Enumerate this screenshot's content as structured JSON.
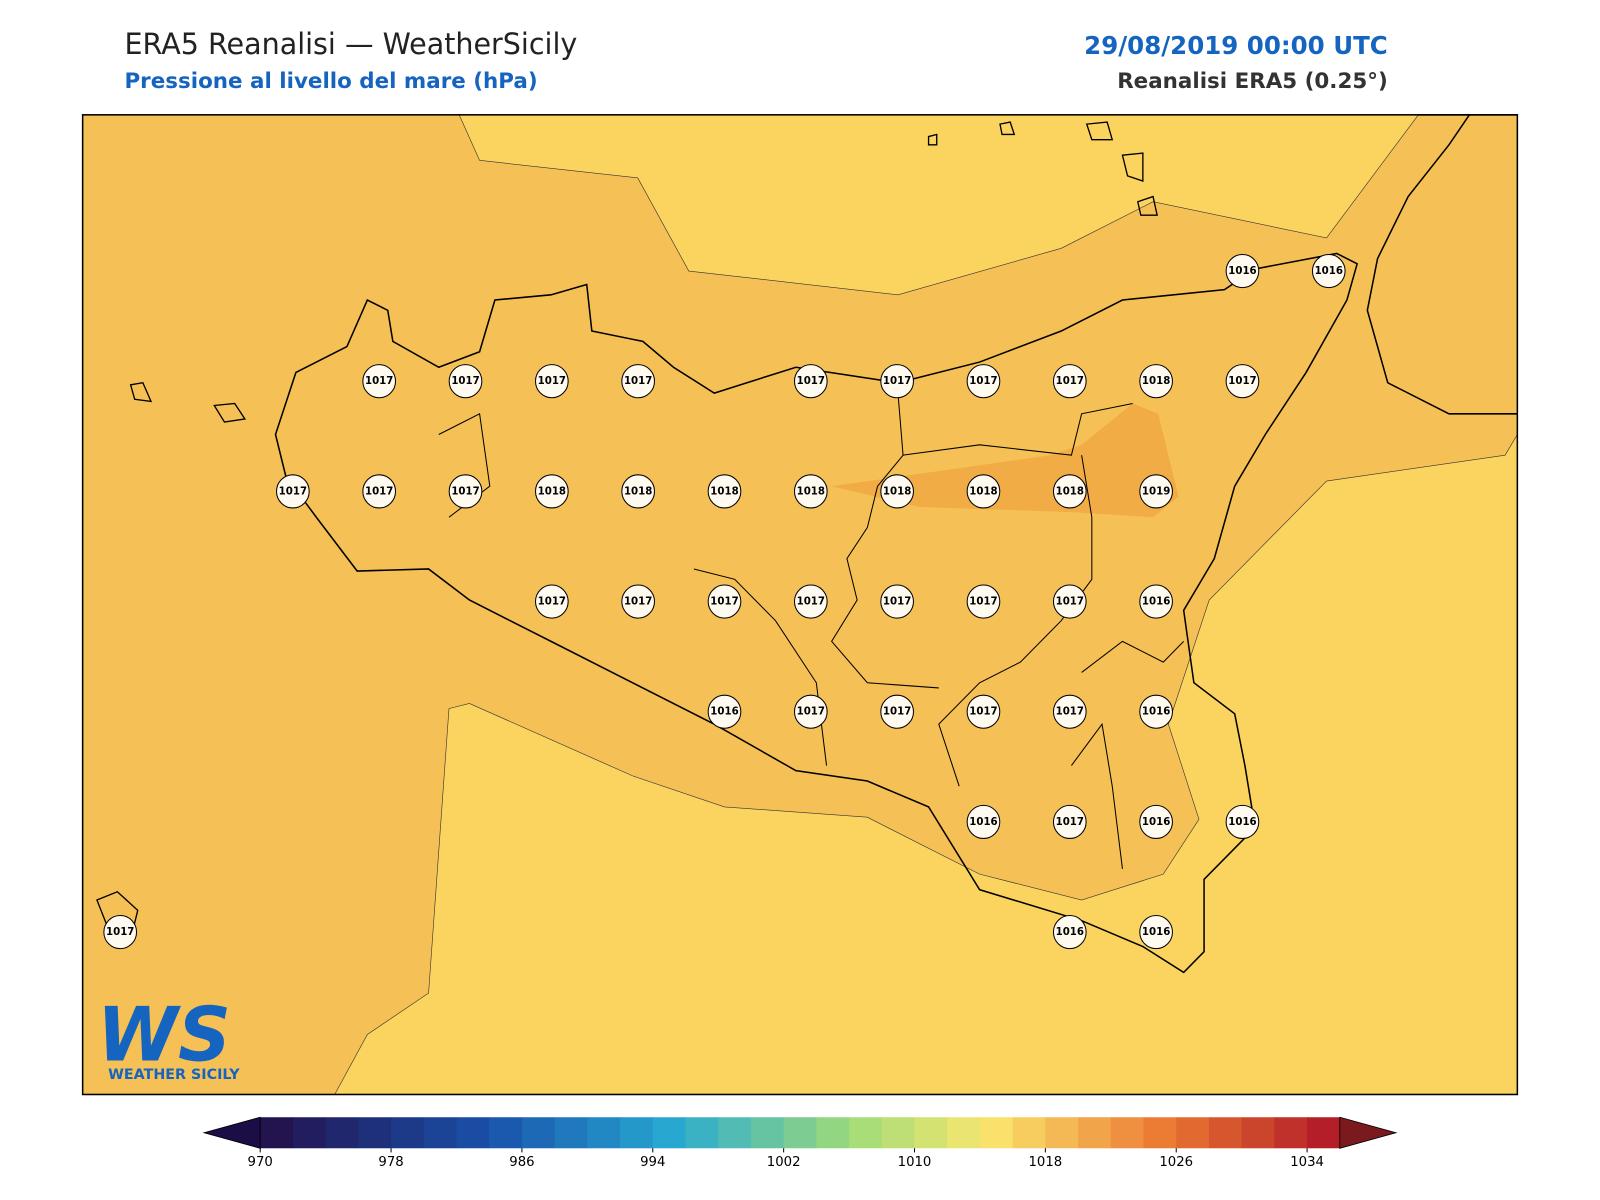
{
  "header": {
    "title": "ERA5 Reanalisi — WeatherSicily",
    "subtitle": "Pressione al livello del mare (hPa)",
    "date": "29/08/2019 00:00 UTC",
    "source": "Reanalisi ERA5 (0.25°)"
  },
  "map": {
    "labels": [
      1016,
      1016,
      1017,
      1017,
      1017,
      1017,
      1017,
      1017,
      1017,
      1017,
      1018,
      1017,
      1017,
      1017,
      1017,
      1018,
      1018,
      1018,
      1018,
      1018,
      1018,
      1018,
      1019,
      1017,
      1017,
      1017,
      1017,
      1017,
      1017,
      1017,
      1016,
      1016,
      1017,
      1017,
      1017,
      1017,
      1016,
      1016,
      1017,
      1016,
      1016,
      1017,
      1016,
      1016
    ]
  },
  "colorbar": {
    "clim": [
      970,
      1036
    ],
    "ticks": [
      970,
      978,
      986,
      994,
      1002,
      1010,
      1018,
      1026,
      1034
    ]
  },
  "logo": {
    "mark": "WS",
    "name": "WEATHER SICILY"
  }
}
